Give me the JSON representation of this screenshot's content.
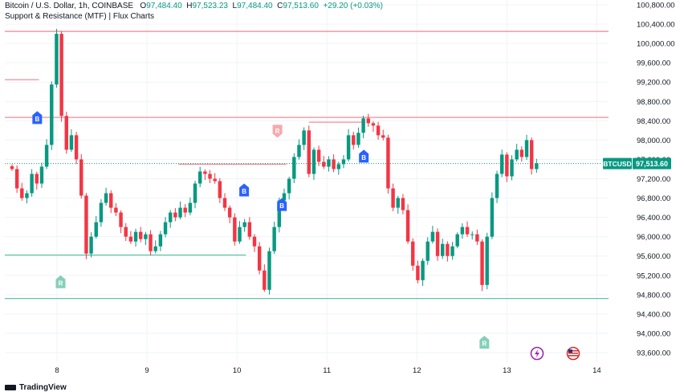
{
  "header": {
    "symbol_line": "Bitcoin / U.S. Dollar, 1h, COINBASE",
    "open_key": "O",
    "open": "97,484.40",
    "high_key": "H",
    "high": "97,523.23",
    "low_key": "L",
    "low": "97,484.40",
    "close_key": "C",
    "close": "97,513.60",
    "change": "+29.20 (+0.03%)",
    "indicator": "Support & Resistance (MTF) | Flux Charts"
  },
  "price_tag": {
    "ticker": "BTCUSD",
    "price": "97,513.60"
  },
  "branding": "TradingView",
  "colors": {
    "up": "#089981",
    "down": "#f23645",
    "resistance": "#f08d99",
    "support": "#5ec4a6",
    "buy_marker": "#2962ff",
    "r_top_marker": "#f7a9ae",
    "r_bottom_marker": "#86cfb8",
    "price_line": "#089981"
  },
  "chart_data": {
    "type": "candlestick",
    "ylim": [
      93400,
      100900
    ],
    "xlim": [
      7.42,
      14.13
    ],
    "yticks": [
      93600,
      94000,
      94400,
      94800,
      95200,
      95600,
      96000,
      96400,
      96800,
      97200,
      97600,
      98000,
      98400,
      98800,
      99200,
      99600,
      100000,
      100400,
      100800
    ],
    "ytick_labels": [
      "93,600.00",
      "94,000.00",
      "94,400.00",
      "94,800.00",
      "95,200.00",
      "95,600.00",
      "96,000.00",
      "96,400.00",
      "96,800.00",
      "97,200.00",
      "97,600.00",
      "98,000.00",
      "98,400.00",
      "98,800.00",
      "99,200.00",
      "99,600.00",
      "100,000.00",
      "100,400.00",
      "100,800.00"
    ],
    "xticks": [
      8,
      9,
      10,
      11,
      12,
      13,
      14
    ],
    "xtick_labels": [
      "8",
      "9",
      "10",
      "11",
      "12",
      "13",
      "14"
    ],
    "last_price": 97513.6,
    "close_series": [
      97400,
      97000,
      96800,
      96900,
      97300,
      97100,
      97450,
      97900,
      99150,
      100200,
      98500,
      97800,
      98100,
      97600,
      96850,
      95650,
      96000,
      96300,
      96700,
      96900,
      96600,
      96500,
      96200,
      96000,
      95900,
      96100,
      95950,
      96050,
      95700,
      95800,
      96050,
      96300,
      96500,
      96400,
      96600,
      96500,
      96700,
      97100,
      97350,
      97300,
      97200,
      97150,
      96800,
      96600,
      96400,
      95900,
      96200,
      96300,
      96000,
      95800,
      95300,
      94900,
      95700,
      96200,
      96750,
      96900,
      97200,
      97650,
      97900,
      98200,
      97300,
      97800,
      97550,
      97450,
      97600,
      97400,
      97500,
      97600,
      98100,
      97900,
      98150,
      98450,
      98350,
      98300,
      98100,
      98050,
      97000,
      96600,
      96800,
      96550,
      95900,
      95400,
      95100,
      95500,
      95900,
      96100,
      95600,
      95850,
      95600,
      95800,
      96050,
      96200,
      96050,
      96050,
      95900,
      95000,
      96000,
      96800,
      97300,
      97700,
      97250,
      97600,
      97800,
      97650,
      98000,
      97400,
      97520
    ],
    "support_resistance": [
      {
        "kind": "resistance",
        "level": 100250,
        "x0": 7.42,
        "x1": 14.13
      },
      {
        "kind": "resistance",
        "level": 99250,
        "x0": 7.42,
        "x1": 7.8
      },
      {
        "kind": "resistance",
        "level": 98470,
        "x0": 7.42,
        "x1": 14.13
      },
      {
        "kind": "resistance",
        "level": 98370,
        "x0": 10.8,
        "x1": 11.4
      },
      {
        "kind": "resistance",
        "level": 97500,
        "x0": 9.35,
        "x1": 10.55
      },
      {
        "kind": "support",
        "level": 95620,
        "x0": 7.42,
        "x1": 10.1
      },
      {
        "kind": "support",
        "level": 94720,
        "x0": 7.42,
        "x1": 14.13
      }
    ],
    "markers": [
      {
        "label": "B",
        "kind": "buy",
        "x": 7.78,
        "y": 98450,
        "dir": "up"
      },
      {
        "label": "R",
        "kind": "r-top",
        "x": 10.45,
        "y": 98200,
        "dir": "down"
      },
      {
        "label": "R",
        "kind": "r-bottom",
        "x": 8.04,
        "y": 95050,
        "dir": "up"
      },
      {
        "label": "B",
        "kind": "buy",
        "x": 10.08,
        "y": 96950,
        "dir": "up"
      },
      {
        "label": "B",
        "kind": "buy",
        "x": 10.5,
        "y": 96650,
        "dir": "up"
      },
      {
        "label": "B",
        "kind": "buy",
        "x": 11.41,
        "y": 97650,
        "dir": "up"
      },
      {
        "label": "R",
        "kind": "r-bottom",
        "x": 12.75,
        "y": 93800,
        "dir": "up"
      }
    ]
  }
}
